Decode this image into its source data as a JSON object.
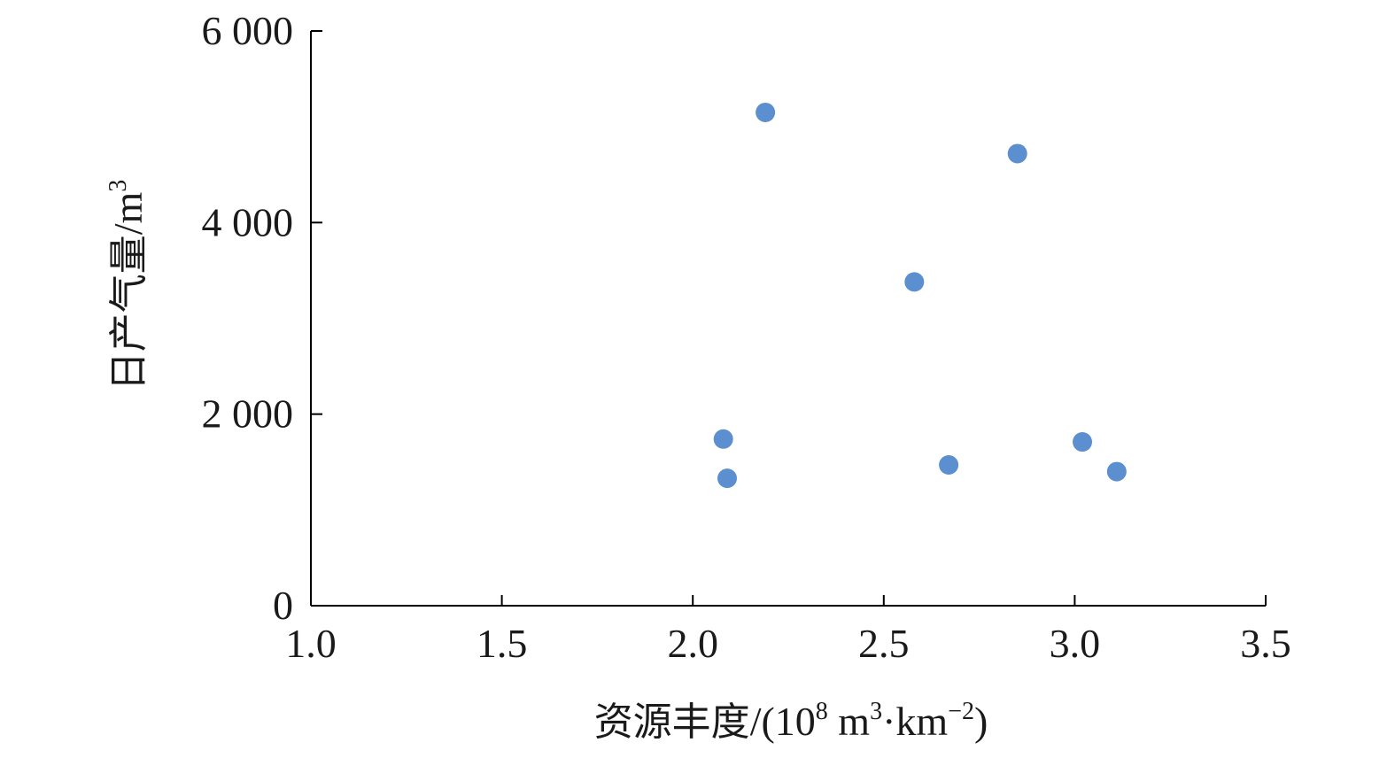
{
  "chart_data": {
    "type": "scatter",
    "xlabel": {
      "prefix": "资源丰度",
      "unit_open": "/(10",
      "exp1": "8",
      "unit_mid1": " m",
      "exp2": "3",
      "unit_mid2": "·km",
      "exp3": "−2",
      "unit_close": ")"
    },
    "ylabel": {
      "prefix": "日产气量",
      "unit": "/m",
      "exp": "3"
    },
    "xlim": [
      1.0,
      3.5
    ],
    "ylim": [
      0,
      6000
    ],
    "x_ticks": [
      1.0,
      1.5,
      2.0,
      2.5,
      3.0,
      3.5
    ],
    "x_tick_labels": [
      "1.0",
      "1.5",
      "2.0",
      "2.5",
      "3.0",
      "3.5"
    ],
    "y_ticks": [
      0,
      2000,
      4000,
      6000
    ],
    "y_tick_labels": [
      "0",
      "2 000",
      "4 000",
      "6 000"
    ],
    "grid": false,
    "marker_color": "#5b8fcf",
    "series": [
      {
        "points": [
          {
            "x": 2.08,
            "y": 1740
          },
          {
            "x": 2.09,
            "y": 1330
          },
          {
            "x": 2.19,
            "y": 5150
          },
          {
            "x": 2.58,
            "y": 3380
          },
          {
            "x": 2.67,
            "y": 1470
          },
          {
            "x": 2.85,
            "y": 4720
          },
          {
            "x": 3.02,
            "y": 1710
          },
          {
            "x": 3.11,
            "y": 1400
          }
        ]
      }
    ]
  }
}
